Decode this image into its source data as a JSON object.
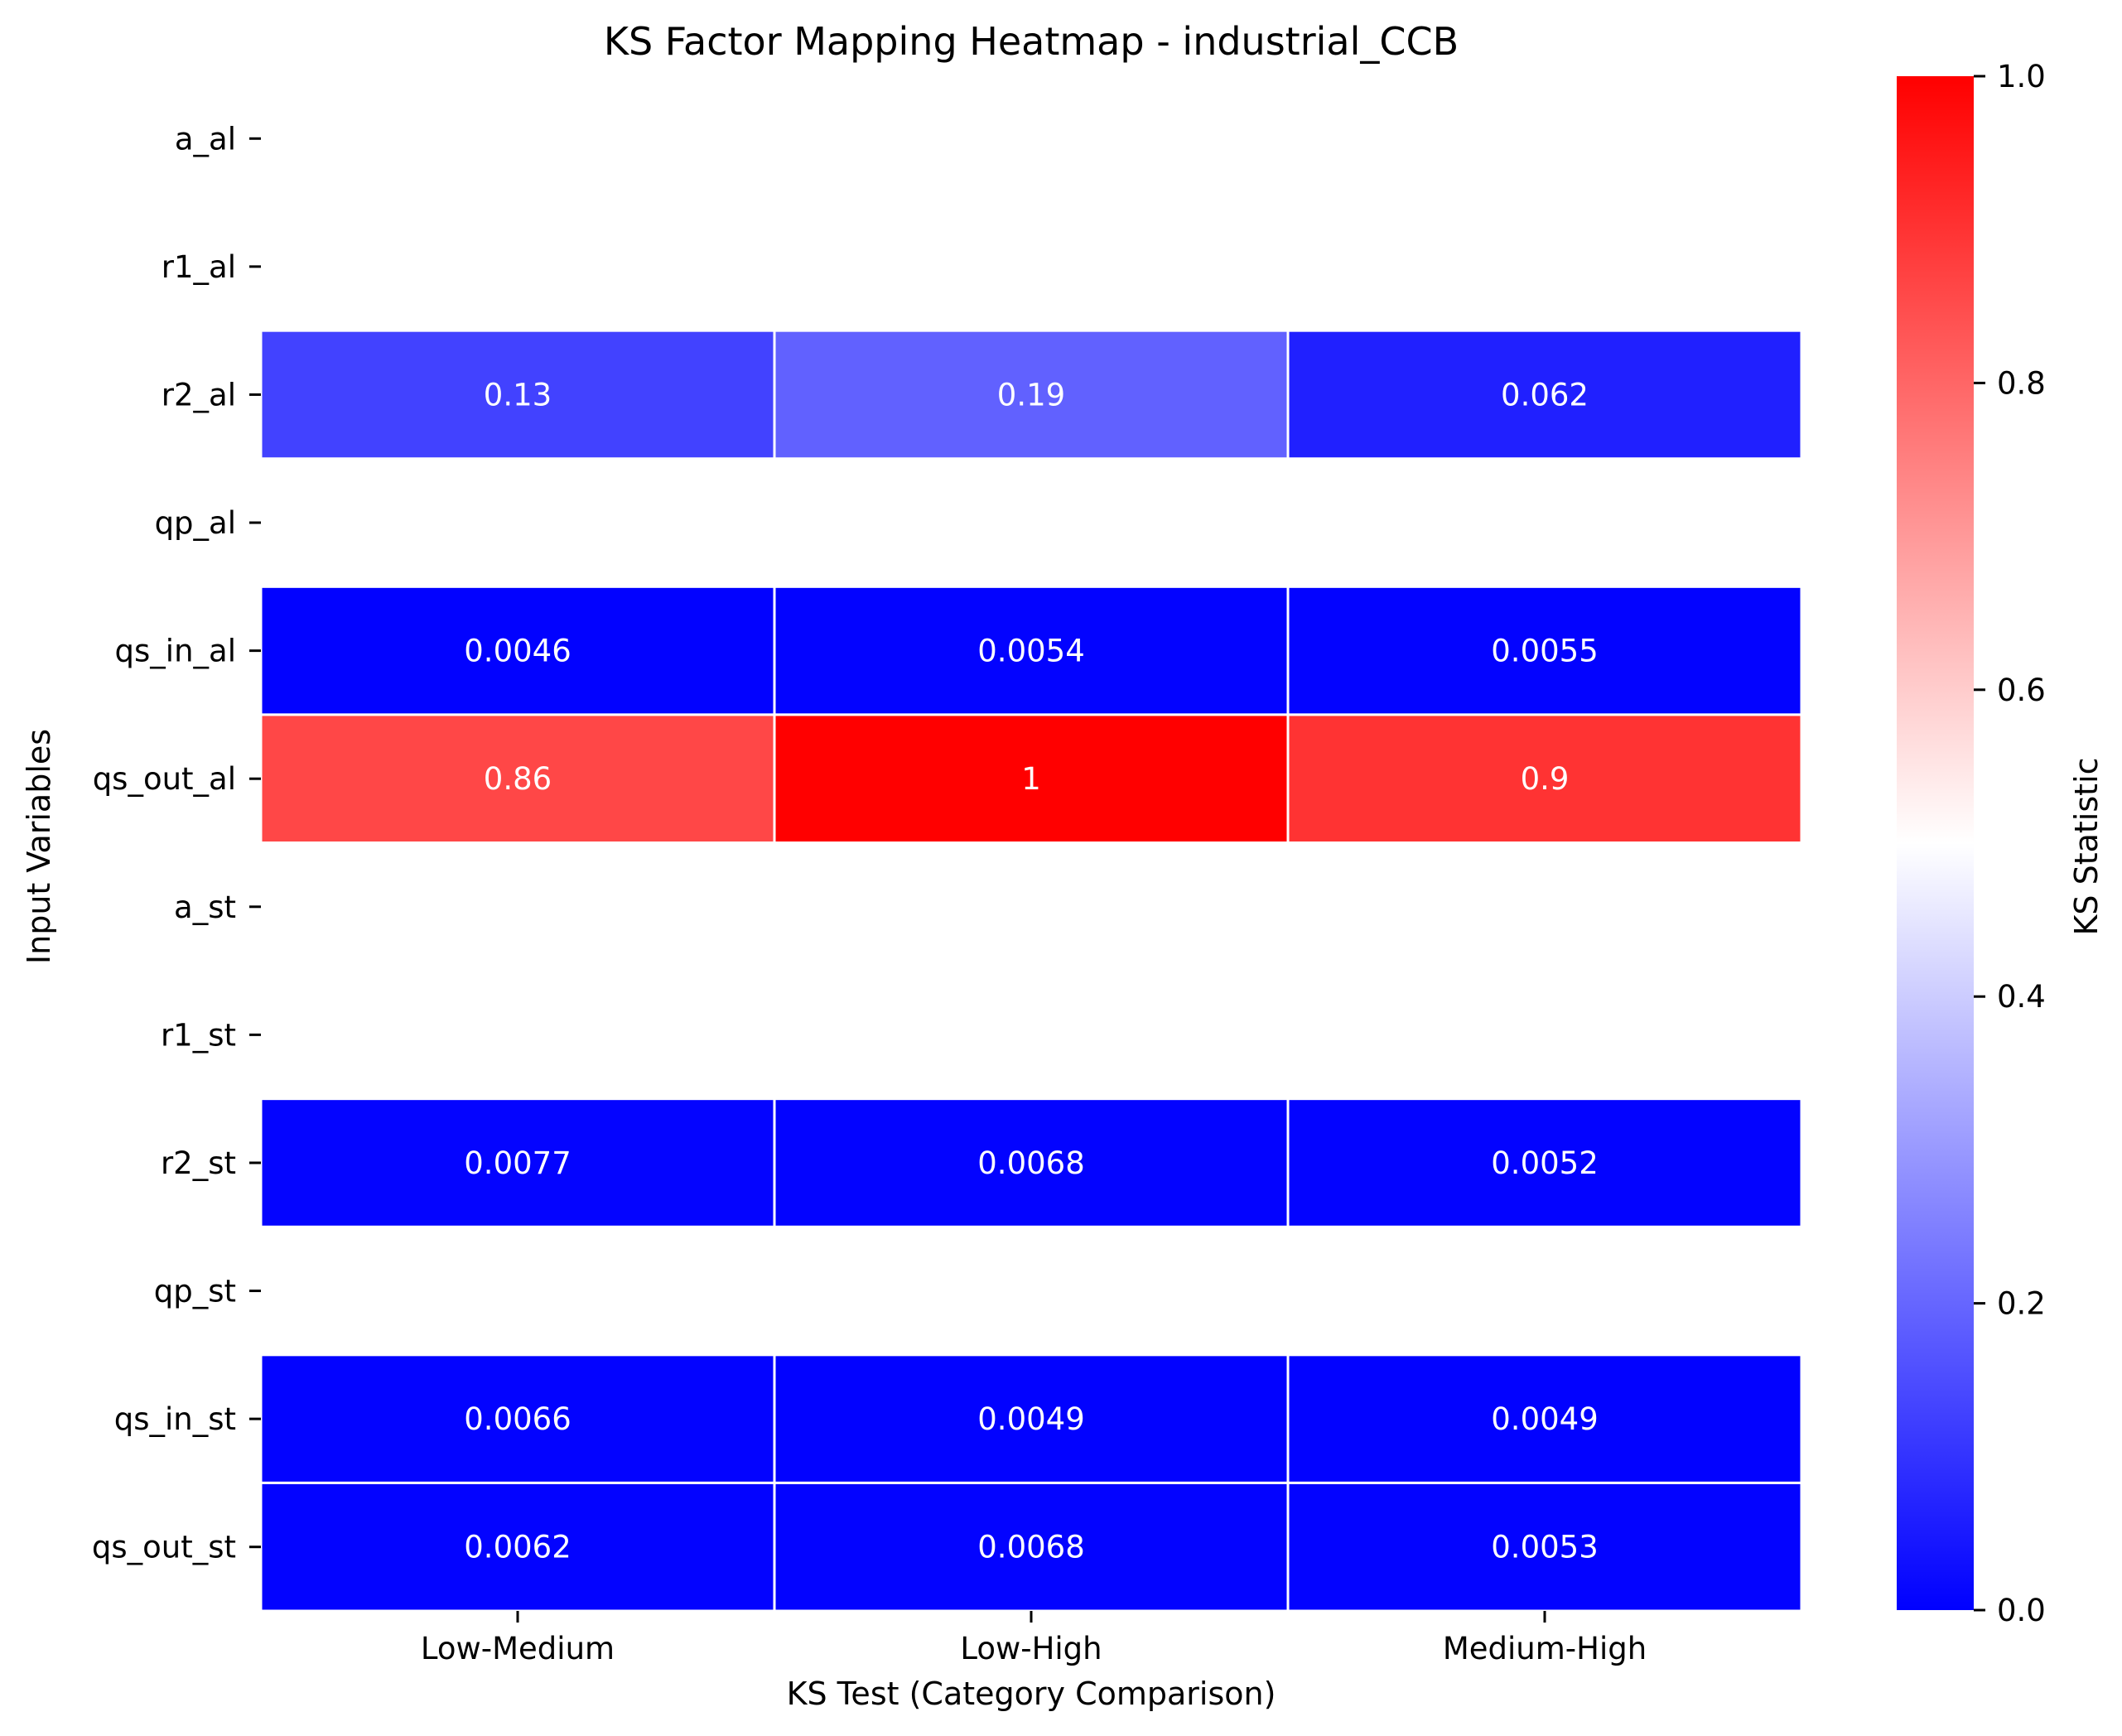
{
  "chart_data": {
    "type": "heatmap",
    "title": "KS Factor Mapping Heatmap - industrial_CCB",
    "xlabel": "KS Test (Category Comparison)",
    "ylabel": "Input Variables",
    "columns": [
      "Low-Medium",
      "Low-High",
      "Medium-High"
    ],
    "rows": [
      "a_al",
      "r1_al",
      "r2_al",
      "qp_al",
      "qs_in_al",
      "qs_out_al",
      "a_st",
      "r1_st",
      "r2_st",
      "qp_st",
      "qs_in_st",
      "qs_out_st"
    ],
    "values": [
      [
        null,
        null,
        null
      ],
      [
        null,
        null,
        null
      ],
      [
        0.13,
        0.19,
        0.062
      ],
      [
        null,
        null,
        null
      ],
      [
        0.0046,
        0.0054,
        0.0055
      ],
      [
        0.86,
        1,
        0.9
      ],
      [
        null,
        null,
        null
      ],
      [
        null,
        null,
        null
      ],
      [
        0.0077,
        0.0068,
        0.0052
      ],
      [
        null,
        null,
        null
      ],
      [
        0.0066,
        0.0049,
        0.0049
      ],
      [
        0.0062,
        0.0068,
        0.0053
      ]
    ],
    "cell_labels": [
      [
        "",
        "",
        ""
      ],
      [
        "",
        "",
        ""
      ],
      [
        "0.13",
        "0.19",
        "0.062"
      ],
      [
        "",
        "",
        ""
      ],
      [
        "0.0046",
        "0.0054",
        "0.0055"
      ],
      [
        "0.86",
        "1",
        "0.9"
      ],
      [
        "",
        "",
        ""
      ],
      [
        "",
        "",
        ""
      ],
      [
        "0.0077",
        "0.0068",
        "0.0052"
      ],
      [
        "",
        "",
        ""
      ],
      [
        "0.0066",
        "0.0049",
        "0.0049"
      ],
      [
        "0.0062",
        "0.0068",
        "0.0053"
      ]
    ],
    "colorbar": {
      "label": "KS Statistic",
      "range": [
        0,
        1
      ],
      "ticks": [
        "0.0",
        "0.2",
        "0.4",
        "0.6",
        "0.8",
        "1.0"
      ],
      "colormap": [
        "#0000ff",
        "#ffffff",
        "#ff0000"
      ]
    },
    "legend": "colorbar-right",
    "grid": false
  }
}
